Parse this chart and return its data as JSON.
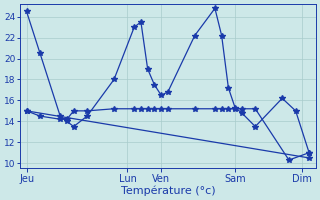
{
  "background_color": "#cde8e8",
  "grid_color": "#a8cccc",
  "line_color": "#1a3aaa",
  "xlabel": "Température (°c)",
  "ylim": [
    9.5,
    25.2
  ],
  "yticks": [
    10,
    12,
    14,
    16,
    18,
    20,
    22,
    24
  ],
  "xlim": [
    0,
    22
  ],
  "x_tick_positions": [
    0.5,
    8,
    10.5,
    16,
    21
  ],
  "x_tick_labels": [
    "Jeu",
    "Lun",
    "Ven",
    "Sam",
    "Dim"
  ],
  "series1_x": [
    0.5,
    1.5,
    3.0,
    3.5,
    4.0,
    5.0,
    7.0,
    8.5,
    9.0,
    9.5,
    10.0,
    10.5,
    11.0,
    13.0,
    14.5,
    15.0,
    15.5,
    16.0,
    16.5,
    17.5,
    19.5,
    20.5,
    21.5
  ],
  "series1_y": [
    24.5,
    20.5,
    14.5,
    14.0,
    13.5,
    14.5,
    18.0,
    23.0,
    23.5,
    19.0,
    17.5,
    16.5,
    16.8,
    22.2,
    24.8,
    22.2,
    17.2,
    15.3,
    14.8,
    13.5,
    16.2,
    15.0,
    11.0
  ],
  "series2_x": [
    0.5,
    1.5,
    3.0,
    3.5,
    4.0,
    5.0,
    7.0,
    8.5,
    9.0,
    9.5,
    10.0,
    10.5,
    11.0,
    13.0,
    14.5,
    15.0,
    15.5,
    16.0,
    16.5,
    17.5,
    20.0,
    21.5
  ],
  "series2_y": [
    15.0,
    14.5,
    14.2,
    14.2,
    15.0,
    15.0,
    15.2,
    15.2,
    15.2,
    15.2,
    15.2,
    15.2,
    15.2,
    15.2,
    15.2,
    15.2,
    15.2,
    15.2,
    15.2,
    15.2,
    10.3,
    11.0
  ],
  "series3_x": [
    0.5,
    21.5
  ],
  "series3_y": [
    15.0,
    10.5
  ]
}
